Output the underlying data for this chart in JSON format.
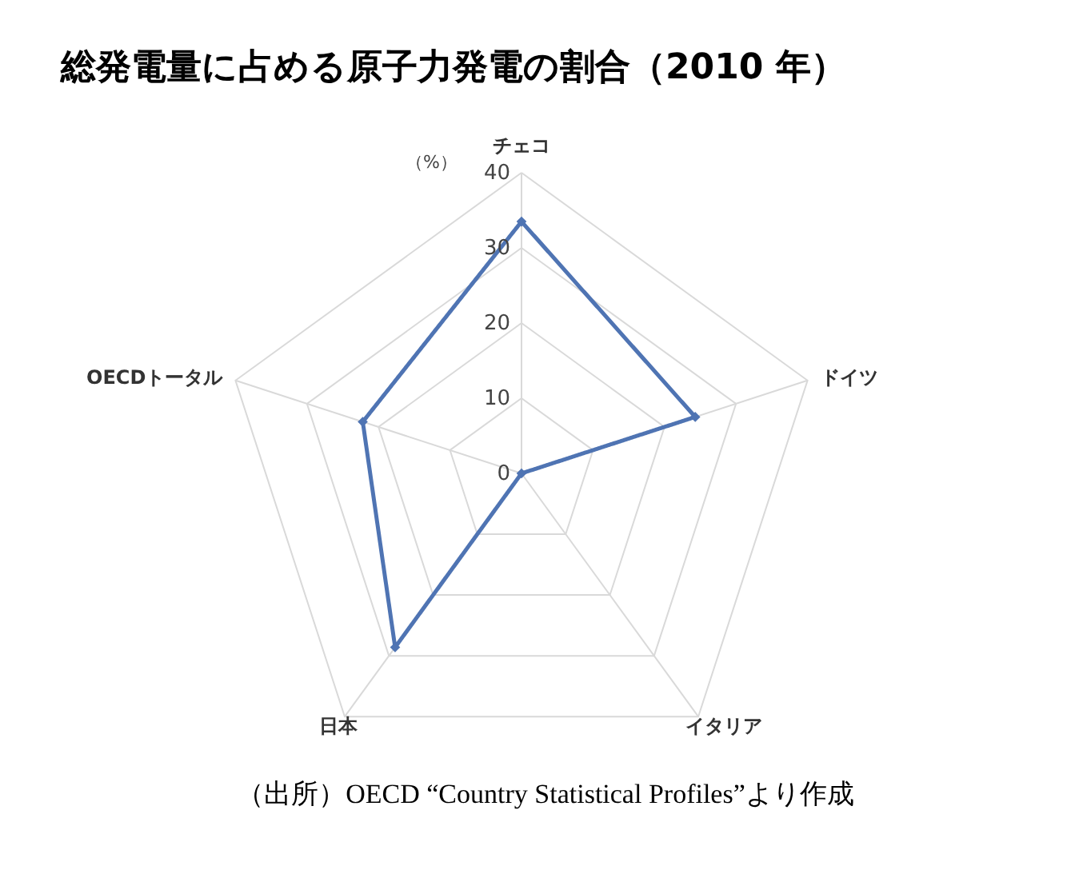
{
  "chart_data": {
    "type": "radar",
    "title": "総発電量に占める原子力発電の割合（2010 年）",
    "ylabel": "（%）",
    "categories": [
      "チェコ",
      "ドイツ",
      "イタリア",
      "日本",
      "OECDトータル"
    ],
    "series": [
      {
        "color": "#4f74b3",
        "values": [
          33.5,
          24.3,
          0,
          28.6,
          22.2
        ]
      }
    ],
    "ylim": [
      0,
      40
    ],
    "yticks": [
      0,
      10,
      20,
      30,
      40
    ],
    "grid": true,
    "marker": "diamond",
    "line_style": "solid",
    "annotations": [
      "（出所）OECD “Country Statistical Profiles”より作成"
    ]
  }
}
